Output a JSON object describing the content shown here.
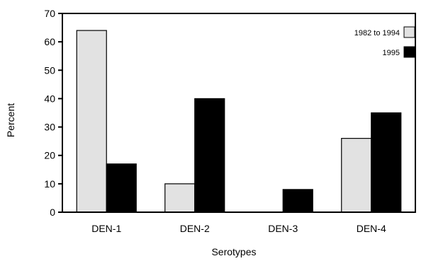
{
  "chart_data": {
    "type": "bar",
    "categories": [
      "DEN-1",
      "DEN-2",
      "DEN-3",
      "DEN-4"
    ],
    "series": [
      {
        "name": "1982 to 1994",
        "values": [
          64,
          10,
          0,
          26
        ],
        "color": "#e2e2e2"
      },
      {
        "name": "1995",
        "values": [
          17,
          40,
          8,
          35
        ],
        "color": "#000000"
      }
    ],
    "xlabel": "Serotypes",
    "ylabel": "Percent",
    "ylim": [
      0,
      70
    ],
    "yticks": [
      "0",
      "10",
      "20",
      "30",
      "40",
      "50",
      "60",
      "70"
    ],
    "grid": false,
    "legend_position": "top-right"
  }
}
